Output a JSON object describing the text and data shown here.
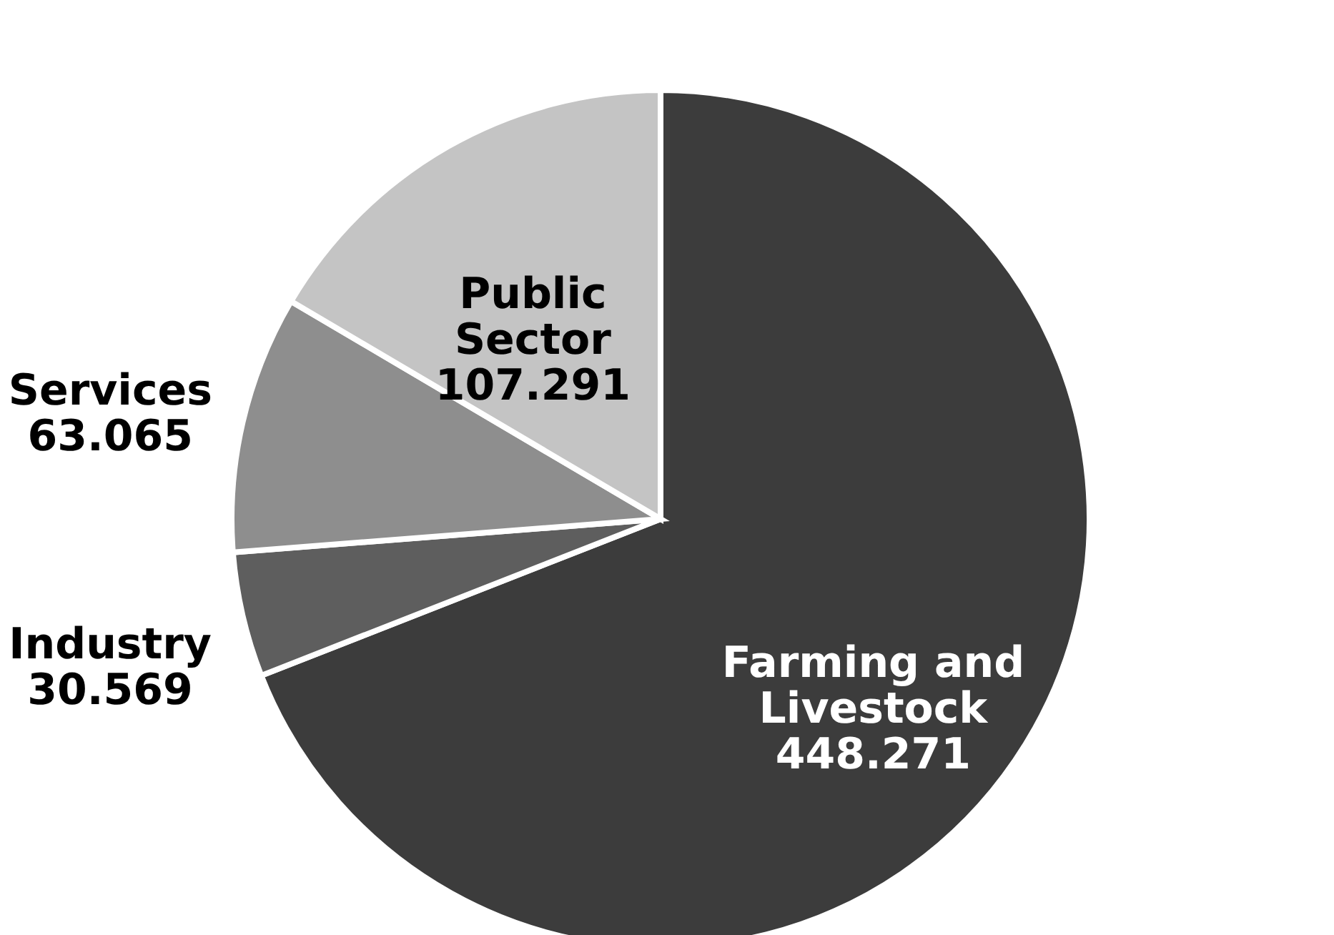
{
  "chart_data": {
    "type": "pie",
    "categories": [
      "Farming and Livestock",
      "Industry",
      "Services",
      "Public Sector"
    ],
    "values": [
      448.271,
      30.569,
      63.065,
      107.291
    ],
    "colors": [
      "#3c3c3c",
      "#5e5e5e",
      "#8e8e8e",
      "#c4c4c4"
    ],
    "data_labels": true
  }
}
